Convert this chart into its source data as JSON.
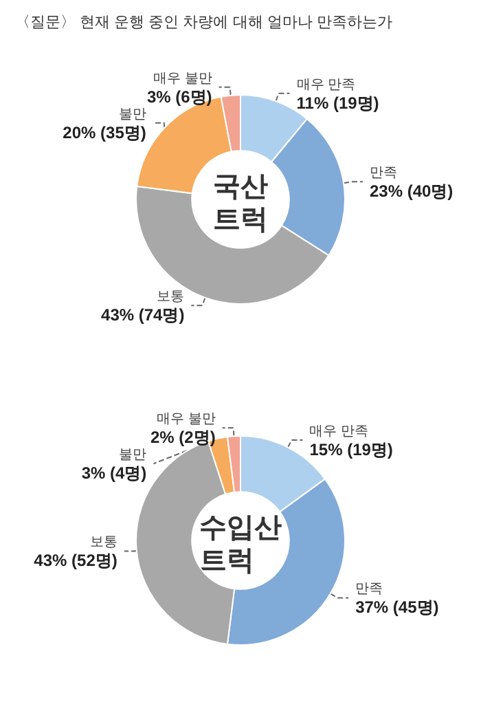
{
  "chart_data": [
    {
      "type": "donut",
      "title": "〈질문〉 현재 운행 중인 차량에 대해 얼마나 만족하는가",
      "annotations": [
        "국산 트럭"
      ],
      "categories": [
        "매우 만족",
        "만족",
        "보통",
        "불만",
        "매우 불만"
      ],
      "values": [
        11,
        23,
        43,
        20,
        3
      ],
      "value_labels": [
        "11% (19명)",
        "23% (40명)",
        "43% (74명)",
        "20% (35명)",
        "3% (6명)"
      ],
      "colors": [
        "#aed0ef",
        "#80aad8",
        "#a8a8a8",
        "#f7ab5c",
        "#f2a391"
      ]
    },
    {
      "type": "donut",
      "annotations": [
        "수입산 트럭"
      ],
      "categories": [
        "매우 만족",
        "만족",
        "보통",
        "불만",
        "매우 불만"
      ],
      "values": [
        15,
        37,
        43,
        3,
        2
      ],
      "value_labels": [
        "15% (19명)",
        "37% (45명)",
        "43% (52명)",
        "3% (4명)",
        "2% (2명)"
      ],
      "colors": [
        "#aed0ef",
        "#80aad8",
        "#a8a8a8",
        "#f7ab5c",
        "#f2a391"
      ]
    }
  ]
}
